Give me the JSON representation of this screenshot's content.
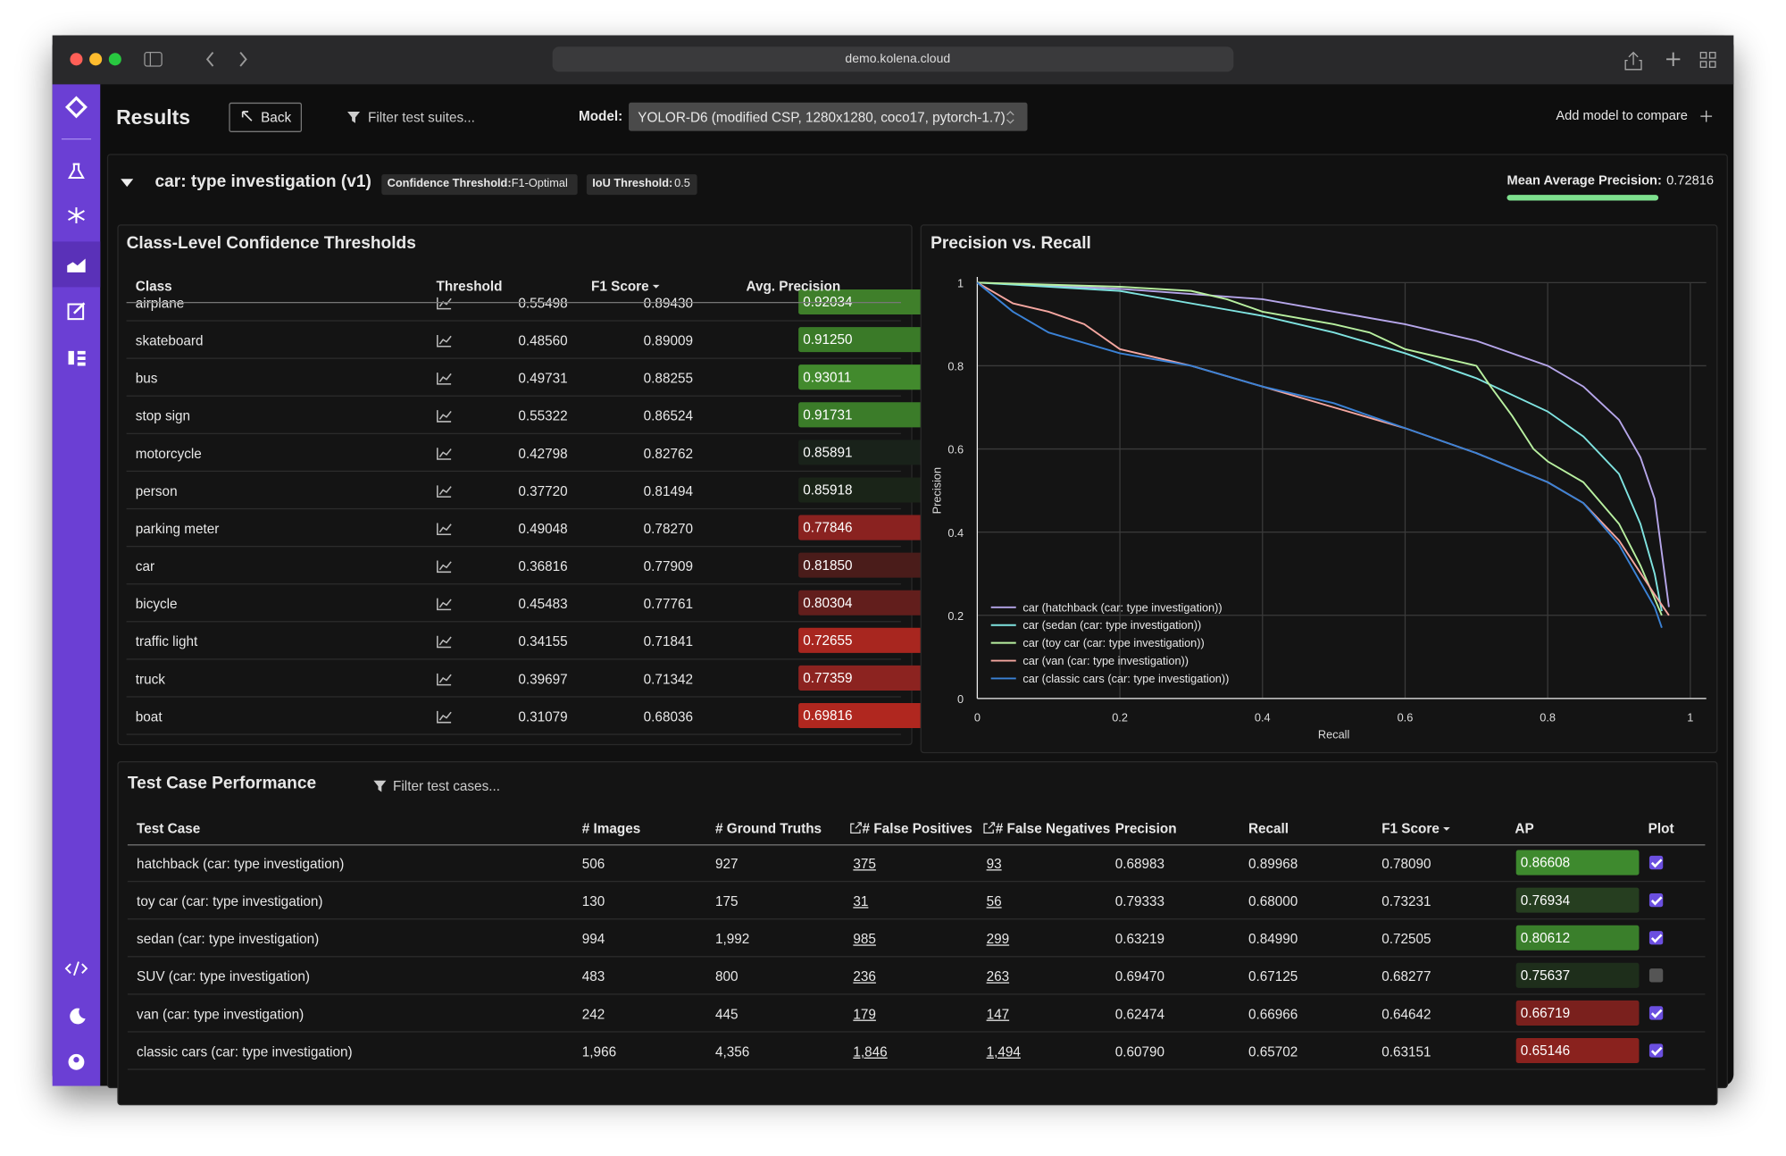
{
  "browser": {
    "url": "demo.kolena.cloud"
  },
  "header": {
    "title": "Results",
    "back": "Back",
    "filter": "Filter test suites...",
    "model_label": "Model:",
    "model": "YOLOR-D6 (modified CSP, 1280x1280, coco17, pytorch-1.7)",
    "add_model": "Add model to compare"
  },
  "suite": {
    "title": "car: type investigation (v1)",
    "confidence_label": "Confidence Threshold:",
    "confidence": "F1-Optimal",
    "iou_label": "IoU Threshold:",
    "iou": "0.5",
    "map_label": "Mean Average Precision:",
    "map": "0.72816"
  },
  "class_table": {
    "title": "Class-Level Confidence Thresholds",
    "columns": [
      "Class",
      "Threshold",
      "F1 Score",
      "Avg. Precision"
    ],
    "rows": [
      {
        "class": "airplane",
        "threshold": "0.55498",
        "f1": "0.89430",
        "ap": "0.92034",
        "color": "#3f7f2a"
      },
      {
        "class": "skateboard",
        "threshold": "0.48560",
        "f1": "0.89009",
        "ap": "0.91250",
        "color": "#3a7a28"
      },
      {
        "class": "bus",
        "threshold": "0.49731",
        "f1": "0.88255",
        "ap": "0.93011",
        "color": "#428a2d"
      },
      {
        "class": "stop sign",
        "threshold": "0.55322",
        "f1": "0.86524",
        "ap": "0.91731",
        "color": "#3b7c29"
      },
      {
        "class": "motorcycle",
        "threshold": "0.42798",
        "f1": "0.82762",
        "ap": "0.85891",
        "color": "#19221a"
      },
      {
        "class": "person",
        "threshold": "0.37720",
        "f1": "0.81494",
        "ap": "0.85918",
        "color": "#1a2418"
      },
      {
        "class": "parking meter",
        "threshold": "0.49048",
        "f1": "0.78270",
        "ap": "0.77846",
        "color": "#8a2220"
      },
      {
        "class": "car",
        "threshold": "0.36816",
        "f1": "0.77909",
        "ap": "0.81850",
        "color": "#4a1c1a"
      },
      {
        "class": "bicycle",
        "threshold": "0.45483",
        "f1": "0.77761",
        "ap": "0.80304",
        "color": "#621e1c"
      },
      {
        "class": "traffic light",
        "threshold": "0.34155",
        "f1": "0.71841",
        "ap": "0.72655",
        "color": "#a8261f"
      },
      {
        "class": "truck",
        "threshold": "0.39697",
        "f1": "0.71342",
        "ap": "0.77359",
        "color": "#8c2320"
      },
      {
        "class": "boat",
        "threshold": "0.31079",
        "f1": "0.68036",
        "ap": "0.69816",
        "color": "#b0271f"
      }
    ]
  },
  "chart_data": {
    "type": "line",
    "title": "Precision vs. Recall",
    "xlabel": "Recall",
    "ylabel": "Precision",
    "xlim": [
      0,
      1
    ],
    "ylim": [
      0,
      1
    ],
    "xticks": [
      0,
      0.2,
      0.4,
      0.6,
      0.8,
      1
    ],
    "yticks": [
      0,
      0.2,
      0.4,
      0.6,
      0.8,
      1
    ],
    "grid": true,
    "legend": "lower left",
    "series": [
      {
        "name": "car (hatchback (car: type investigation))",
        "color": "#b6a6ea",
        "x": [
          0,
          0.2,
          0.4,
          0.5,
          0.6,
          0.7,
          0.8,
          0.85,
          0.9,
          0.93,
          0.95,
          0.96,
          0.97
        ],
        "values": [
          1,
          0.985,
          0.96,
          0.93,
          0.9,
          0.86,
          0.8,
          0.75,
          0.67,
          0.58,
          0.48,
          0.35,
          0.22
        ]
      },
      {
        "name": "car (sedan (car: type investigation))",
        "color": "#7fe3e0",
        "x": [
          0,
          0.2,
          0.4,
          0.5,
          0.6,
          0.7,
          0.8,
          0.85,
          0.9,
          0.93,
          0.95,
          0.96
        ],
        "values": [
          1,
          0.98,
          0.92,
          0.88,
          0.83,
          0.77,
          0.69,
          0.63,
          0.54,
          0.42,
          0.3,
          0.21
        ]
      },
      {
        "name": "car (toy car (car: type investigation))",
        "color": "#b8f0a0",
        "x": [
          0,
          0.2,
          0.3,
          0.35,
          0.4,
          0.5,
          0.55,
          0.6,
          0.7,
          0.72,
          0.75,
          0.78,
          0.8,
          0.85,
          0.9,
          0.93,
          0.96
        ],
        "values": [
          1,
          0.99,
          0.98,
          0.96,
          0.93,
          0.9,
          0.88,
          0.84,
          0.8,
          0.75,
          0.68,
          0.6,
          0.57,
          0.52,
          0.42,
          0.32,
          0.2
        ]
      },
      {
        "name": "car (van (car: type investigation))",
        "color": "#f4a6a0",
        "x": [
          0,
          0.05,
          0.1,
          0.15,
          0.2,
          0.3,
          0.4,
          0.5,
          0.6,
          0.7,
          0.8,
          0.85,
          0.9,
          0.95,
          0.97
        ],
        "values": [
          1,
          0.95,
          0.93,
          0.9,
          0.84,
          0.8,
          0.75,
          0.7,
          0.65,
          0.59,
          0.52,
          0.47,
          0.38,
          0.25,
          0.2
        ]
      },
      {
        "name": "car (classic cars (car: type investigation))",
        "color": "#3b82d6",
        "x": [
          0,
          0.05,
          0.1,
          0.2,
          0.3,
          0.4,
          0.5,
          0.6,
          0.7,
          0.8,
          0.85,
          0.9,
          0.95,
          0.96
        ],
        "values": [
          1,
          0.93,
          0.88,
          0.83,
          0.8,
          0.75,
          0.71,
          0.65,
          0.59,
          0.52,
          0.47,
          0.37,
          0.22,
          0.17
        ]
      }
    ]
  },
  "test_table": {
    "title": "Test Case Performance",
    "filter": "Filter test cases...",
    "columns": [
      "Test Case",
      "# Images",
      "# Ground Truths",
      "# False Positives",
      "# False Negatives",
      "Precision",
      "Recall",
      "F1 Score",
      "AP",
      "Plot"
    ],
    "rows": [
      {
        "name": "hatchback (car: type investigation)",
        "images": "506",
        "gt": "927",
        "fp": "375",
        "fn": "93",
        "precision": "0.68983",
        "recall": "0.89968",
        "f1": "0.78090",
        "ap": "0.86608",
        "color": "#3e8a2e",
        "plot": true
      },
      {
        "name": "toy car (car: type investigation)",
        "images": "130",
        "gt": "175",
        "fp": "31",
        "fn": "56",
        "precision": "0.79333",
        "recall": "0.68000",
        "f1": "0.73231",
        "ap": "0.76934",
        "color": "#263e20",
        "plot": true
      },
      {
        "name": "sedan (car: type investigation)",
        "images": "994",
        "gt": "1,992",
        "fp": "985",
        "fn": "299",
        "precision": "0.63219",
        "recall": "0.84990",
        "f1": "0.72505",
        "ap": "0.80612",
        "color": "#3a7f2b",
        "plot": true
      },
      {
        "name": "SUV (car: type investigation)",
        "images": "483",
        "gt": "800",
        "fp": "236",
        "fn": "263",
        "precision": "0.69470",
        "recall": "0.67125",
        "f1": "0.68277",
        "ap": "0.75637",
        "color": "#1e2e1b",
        "plot": false
      },
      {
        "name": "van (car: type investigation)",
        "images": "242",
        "gt": "445",
        "fp": "179",
        "fn": "147",
        "precision": "0.62474",
        "recall": "0.66966",
        "f1": "0.64642",
        "ap": "0.66719",
        "color": "#7a201d",
        "plot": true
      },
      {
        "name": "classic cars (car: type investigation)",
        "images": "1,966",
        "gt": "4,356",
        "fp": "1,846",
        "fn": "1,494",
        "precision": "0.60790",
        "recall": "0.65702",
        "f1": "0.63151",
        "ap": "0.65146",
        "color": "#8a221e",
        "plot": true
      }
    ]
  }
}
